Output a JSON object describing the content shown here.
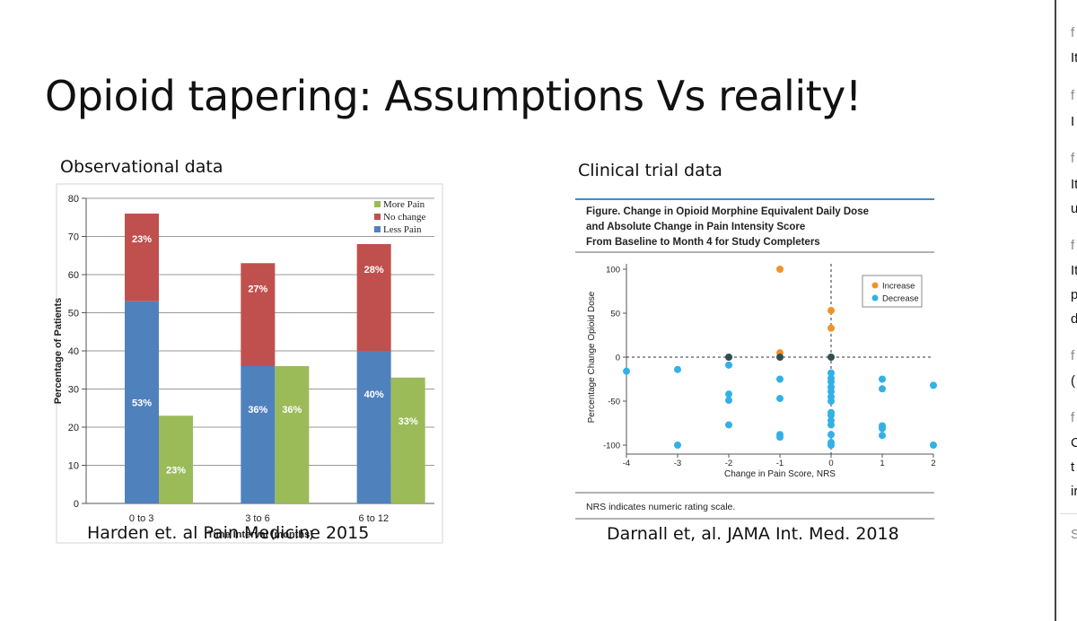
{
  "slide": {
    "title": "Opioid tapering: Assumptions Vs reality!",
    "observational_label": "Observational data",
    "trial_label": "Clinical trial data",
    "left_citation": "Harden et. al Pain Medicine 2015",
    "right_citation": "Darnall et, al. JAMA Int. Med. 2018"
  },
  "side_panel": {
    "items": [
      "f",
      "It",
      "f",
      "I",
      "f",
      "It",
      "u",
      "f",
      "It",
      "p",
      "d",
      "f",
      "(",
      "f",
      "C",
      "t",
      "ir",
      "S"
    ]
  },
  "colors": {
    "less_pain": "#4f81bd",
    "no_change": "#c0504d",
    "more_pain": "#9bbb59",
    "increase": "#f0922a",
    "decrease": "#33b1e6",
    "jama_rule": "#3a8ec9"
  },
  "chart_data": [
    {
      "type": "bar",
      "stacked": true,
      "categories": [
        "0 to 3",
        "3 to 6",
        "6 to 12"
      ],
      "xlabel": "Time Interval (months)",
      "ylabel": "Percentage of Patients",
      "ylim": [
        0,
        80
      ],
      "yticks": [
        0,
        10,
        20,
        30,
        40,
        50,
        60,
        70,
        80
      ],
      "grid": true,
      "legend_position": "top-right",
      "stacked_series": [
        {
          "name": "Less Pain",
          "values": [
            53,
            36,
            40
          ],
          "labels": [
            "53%",
            "36%",
            "40%"
          ]
        },
        {
          "name": "No change",
          "values": [
            23,
            27,
            28
          ],
          "labels": [
            "23%",
            "27%",
            "28%"
          ]
        }
      ],
      "side_series": {
        "name": "More Pain",
        "values": [
          23,
          36,
          33
        ],
        "labels": [
          "23%",
          "36%",
          "33%"
        ]
      },
      "legend": [
        "More Pain",
        "No change",
        "Less Pain"
      ]
    },
    {
      "type": "scatter",
      "title": "Figure. Change in Opioid Morphine Equivalent Daily Dose and Absolute Change in Pain Intensity Score From Baseline to Month 4 for Study Completers",
      "title_lines": [
        "Figure. Change in Opioid Morphine Equivalent Daily Dose",
        "and Absolute Change in Pain Intensity Score",
        "From Baseline to Month 4 for Study Completers"
      ],
      "xlabel": "Change in Pain Score, NRS",
      "ylabel": "Percentage Change Opioid Dose",
      "xlim": [
        -4,
        2
      ],
      "ylim": [
        -100,
        100
      ],
      "xticks": [
        -4,
        -3,
        -2,
        -1,
        0,
        1,
        2
      ],
      "yticks": [
        -100,
        -50,
        0,
        50,
        100
      ],
      "legend_position": "top-right",
      "legend": [
        "Increase",
        "Decrease"
      ],
      "footnote": "NRS indicates numeric rating scale.",
      "series": [
        {
          "name": "Increase",
          "points": [
            [
              -1,
              100
            ],
            [
              0,
              53
            ],
            [
              0,
              33
            ],
            [
              -1,
              5
            ]
          ]
        },
        {
          "name": "Decrease",
          "points": [
            [
              -4,
              -16
            ],
            [
              -3,
              -14
            ],
            [
              -3,
              -100
            ],
            [
              -2,
              -9
            ],
            [
              -2,
              -42
            ],
            [
              -2,
              -49
            ],
            [
              -2,
              -77
            ],
            [
              -1,
              -25
            ],
            [
              -1,
              -47
            ],
            [
              -1,
              -88
            ],
            [
              -1,
              -91
            ],
            [
              0,
              -18
            ],
            [
              0,
              -24
            ],
            [
              0,
              -28
            ],
            [
              0,
              -34
            ],
            [
              0,
              -39
            ],
            [
              0,
              -45
            ],
            [
              0,
              -50
            ],
            [
              0,
              -63
            ],
            [
              0,
              -66
            ],
            [
              0,
              -72
            ],
            [
              0,
              -77
            ],
            [
              0,
              -88
            ],
            [
              0,
              -97
            ],
            [
              0,
              -100
            ],
            [
              1,
              -25
            ],
            [
              1,
              -36
            ],
            [
              1,
              -78
            ],
            [
              1,
              -81
            ],
            [
              1,
              -89
            ],
            [
              2,
              -32
            ],
            [
              2,
              -100
            ]
          ]
        },
        {
          "name": "No change",
          "points": [
            [
              -2,
              0
            ],
            [
              -1,
              0
            ],
            [
              0,
              0
            ]
          ]
        }
      ]
    }
  ]
}
